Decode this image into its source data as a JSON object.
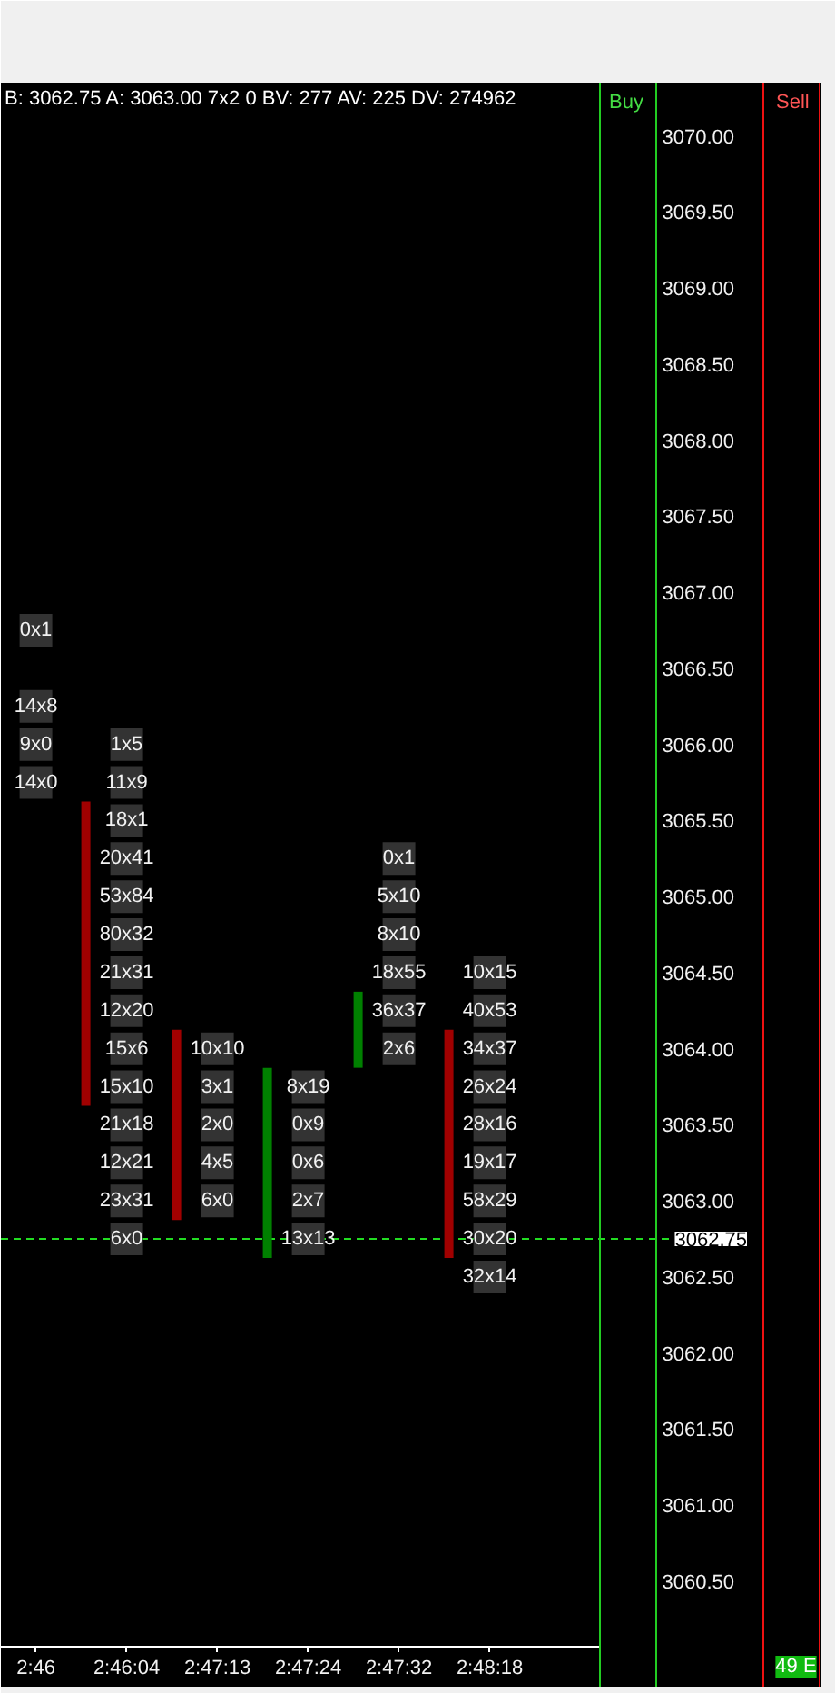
{
  "chart_data": {
    "type": "bar",
    "title": "B: 3062.75 A: 3063.00 7x2 0 BV: 277 AV: 225 DV: 274962",
    "categories": [
      "2:46",
      "2:46:04",
      "2:47:13",
      "2:47:24",
      "2:47:32",
      "2:48:18"
    ],
    "series": [
      {
        "values": [
          null,
          2.0,
          1.25,
          1.25,
          0.5,
          1.5
        ],
        "base": [
          null,
          3063.625,
          3062.875,
          3062.625,
          3063.875,
          3062.625
        ],
        "colors": [
          null,
          "#a00000",
          "#a00000",
          "#008000",
          "#008000",
          "#a00000"
        ]
      },
      {
        "type": "scatter",
        "marker": "square",
        "color": "#333333",
        "x": [
          "2:46",
          "2:46",
          "2:46",
          "2:46",
          "2:46:04",
          "2:46:04",
          "2:46:04",
          "2:46:04",
          "2:46:04",
          "2:46:04",
          "2:46:04",
          "2:46:04",
          "2:46:04",
          "2:46:04",
          "2:46:04",
          "2:46:04",
          "2:46:04",
          "2:46:04",
          "2:47:13",
          "2:47:13",
          "2:47:13",
          "2:47:13",
          "2:47:13",
          "2:47:24",
          "2:47:24",
          "2:47:24",
          "2:47:24",
          "2:47:24",
          "2:47:32",
          "2:47:32",
          "2:47:32",
          "2:47:32",
          "2:47:32",
          "2:47:32",
          "2:48:18",
          "2:48:18",
          "2:48:18",
          "2:48:18",
          "2:48:18",
          "2:48:18",
          "2:48:18",
          "2:48:18",
          "2:48:18"
        ],
        "values": [
          3066.75,
          3066.25,
          3066.0,
          3065.75,
          3066.0,
          3065.75,
          3065.5,
          3065.25,
          3065.0,
          3064.75,
          3064.5,
          3064.25,
          3064.0,
          3063.75,
          3063.5,
          3063.25,
          3063.0,
          3062.75,
          3064.0,
          3063.75,
          3063.5,
          3063.25,
          3063.0,
          3063.75,
          3063.5,
          3063.25,
          3063.0,
          3062.75,
          3065.25,
          3065.0,
          3064.75,
          3064.5,
          3064.25,
          3064.0,
          3064.5,
          3064.25,
          3064.0,
          3063.75,
          3063.5,
          3063.25,
          3063.0,
          3062.75,
          3062.5
        ],
        "value_labels": [
          "0x1",
          "14x8",
          "9x0",
          "14x0",
          "1x5",
          "11x9",
          "18x1",
          "20x41",
          "53x84",
          "80x32",
          "21x31",
          "12x20",
          "15x6",
          "15x10",
          "21x18",
          "12x21",
          "23x31",
          "6x0",
          "10x10",
          "3x1",
          "2x0",
          "4x5",
          "6x0",
          "8x19",
          "0x9",
          "0x6",
          "2x7",
          "13x13",
          "0x1",
          "5x10",
          "8x10",
          "18x55",
          "36x37",
          "2x6",
          "10x15",
          "40x53",
          "34x37",
          "26x24",
          "28x16",
          "19x17",
          "58x29",
          "30x20",
          "32x14"
        ]
      }
    ],
    "ylim": [
      3060.07,
      3070.35
    ],
    "yticks": [
      {
        "value": 3060.5,
        "label": "3060.50"
      },
      {
        "value": 3061,
        "label": "3061.00"
      },
      {
        "value": 3061.5,
        "label": "3061.50"
      },
      {
        "value": 3062,
        "label": "3062.00"
      },
      {
        "value": 3062.5,
        "label": "3062.50"
      },
      {
        "value": 3063,
        "label": "3063.00"
      },
      {
        "value": 3063.5,
        "label": "3063.50"
      },
      {
        "value": 3064,
        "label": "3064.00"
      },
      {
        "value": 3064.5,
        "label": "3064.50"
      },
      {
        "value": 3065,
        "label": "3065.00"
      },
      {
        "value": 3065.5,
        "label": "3065.50"
      },
      {
        "value": 3066,
        "label": "3066.00"
      },
      {
        "value": 3066.5,
        "label": "3066.50"
      },
      {
        "value": 3067,
        "label": "3067.00"
      },
      {
        "value": 3067.5,
        "label": "3067.50"
      },
      {
        "value": 3068,
        "label": "3068.00"
      },
      {
        "value": 3068.5,
        "label": "3068.50"
      },
      {
        "value": 3069,
        "label": "3069.00"
      },
      {
        "value": 3069.5,
        "label": "3069.50"
      },
      {
        "value": 3070,
        "label": "3070.00"
      }
    ],
    "ref_lines": [
      {
        "axis": "y",
        "value": 3062.75,
        "label": "3062.75",
        "color": "#22dd22",
        "line_style": "dashed"
      }
    ],
    "annotations": [
      "Buy",
      "Sell",
      "49 E"
    ]
  }
}
